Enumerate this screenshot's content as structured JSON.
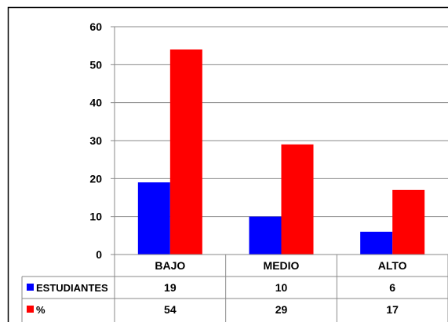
{
  "chart_data": {
    "type": "bar",
    "categories": [
      "BAJO",
      "MEDIO",
      "ALTO"
    ],
    "series": [
      {
        "name": "ESTUDIANTES",
        "values": [
          19,
          10,
          6
        ],
        "color": "#0000ff"
      },
      {
        "name": "%",
        "values": [
          54,
          29,
          17
        ],
        "color": "#ff0000"
      }
    ],
    "ylim": [
      0,
      60
    ],
    "yticks": [
      "0",
      "10",
      "20",
      "30",
      "40",
      "50",
      "60"
    ],
    "grid": true,
    "legend": "data-table"
  },
  "table": {
    "rows": [
      {
        "label": "ESTUDIANTES",
        "cells": [
          "19",
          "10",
          "6"
        ]
      },
      {
        "label": "%",
        "cells": [
          "54",
          "29",
          "17"
        ]
      }
    ]
  }
}
